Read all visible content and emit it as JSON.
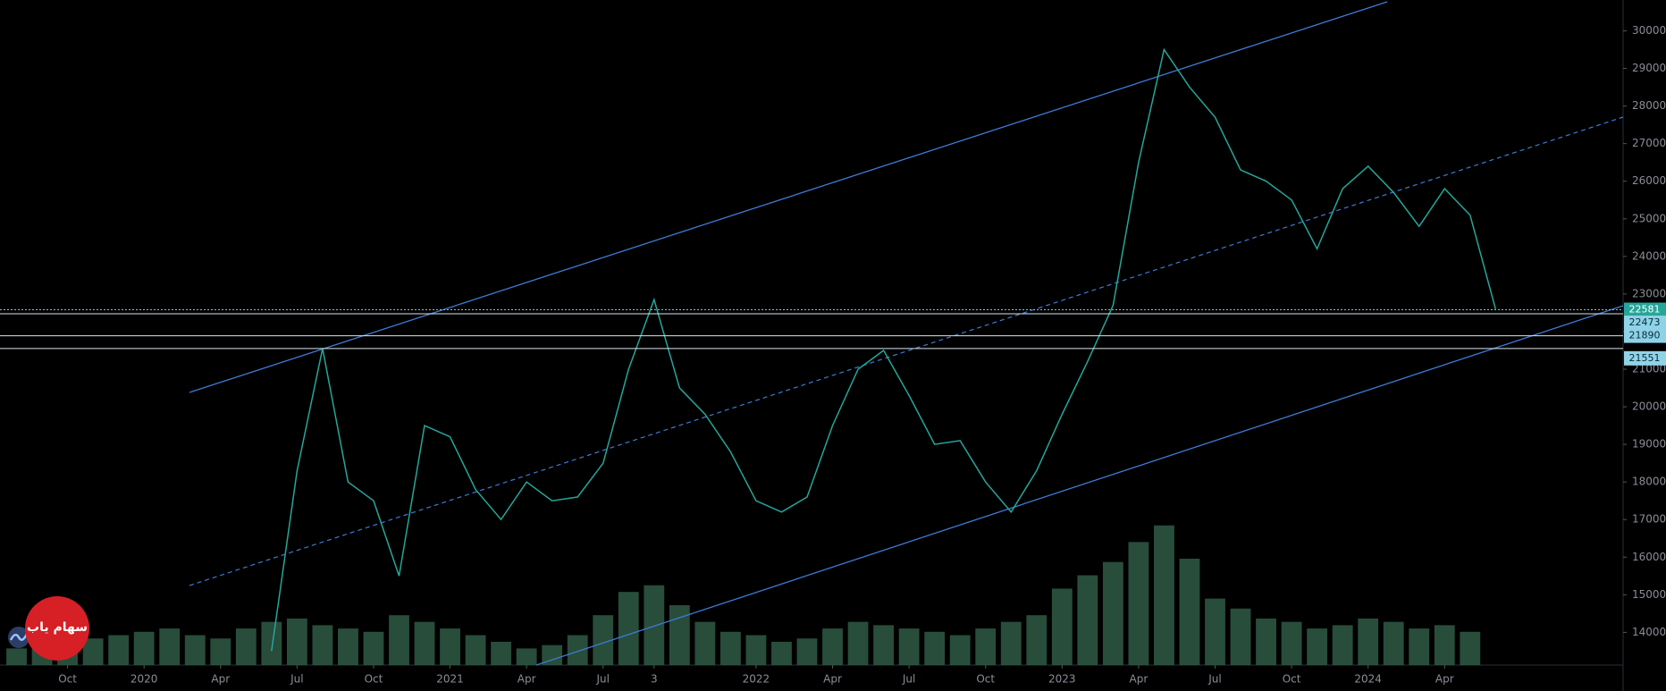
{
  "chart_data": {
    "type": "line",
    "xlim": [
      "2019-07",
      "2024-11"
    ],
    "ylim": [
      13130,
      30820
    ],
    "yticks": [
      14000,
      15000,
      16000,
      17000,
      18000,
      19000,
      20000,
      21000,
      22000,
      23000,
      24000,
      25000,
      26000,
      27000,
      28000,
      29000,
      30000
    ],
    "xticks": [
      {
        "value": "2019-10",
        "label": "Oct"
      },
      {
        "value": "2020-01",
        "label": "2020"
      },
      {
        "value": "2020-04",
        "label": "Apr"
      },
      {
        "value": "2020-07",
        "label": "Jul"
      },
      {
        "value": "2020-10",
        "label": "Oct"
      },
      {
        "value": "2021-01",
        "label": "2021"
      },
      {
        "value": "2021-04",
        "label": "Apr"
      },
      {
        "value": "2021-07",
        "label": "Jul"
      },
      {
        "value": "2021-09",
        "label": "3"
      },
      {
        "value": "2022-01",
        "label": "2022"
      },
      {
        "value": "2022-04",
        "label": "Apr"
      },
      {
        "value": "2022-07",
        "label": "Jul"
      },
      {
        "value": "2022-10",
        "label": "Oct"
      },
      {
        "value": "2023-01",
        "label": "2023"
      },
      {
        "value": "2023-04",
        "label": "Apr"
      },
      {
        "value": "2023-07",
        "label": "Jul"
      },
      {
        "value": "2023-10",
        "label": "Oct"
      },
      {
        "value": "2024-01",
        "label": "2024"
      },
      {
        "value": "2024-04",
        "label": "Apr"
      }
    ],
    "x": [
      "2020-06",
      "2020-07",
      "2020-08",
      "2020-09",
      "2020-10",
      "2020-11",
      "2020-12",
      "2021-01",
      "2021-02",
      "2021-03",
      "2021-04",
      "2021-05",
      "2021-06",
      "2021-07",
      "2021-08",
      "2021-09",
      "2021-10",
      "2021-11",
      "2021-12",
      "2022-01",
      "2022-02",
      "2022-03",
      "2022-04",
      "2022-05",
      "2022-06",
      "2022-07",
      "2022-08",
      "2022-09",
      "2022-10",
      "2022-11",
      "2022-12",
      "2023-01",
      "2023-02",
      "2023-03",
      "2023-04",
      "2023-05",
      "2023-06",
      "2023-07",
      "2023-08",
      "2023-09",
      "2023-10",
      "2023-11",
      "2023-12",
      "2024-01",
      "2024-02",
      "2024-03",
      "2024-04",
      "2024-05",
      "2024-06"
    ],
    "series": [
      {
        "color": "#26a69a",
        "values": [
          13500,
          18300,
          21550,
          18000,
          17500,
          15500,
          19500,
          19200,
          17800,
          17000,
          18000,
          17500,
          17600,
          18500,
          21000,
          22850,
          20500,
          19800,
          18800,
          17500,
          17200,
          17600,
          19500,
          21000,
          21500,
          20300,
          19000,
          19100,
          18000,
          17200,
          18300,
          19800,
          21200,
          22700,
          26500,
          29500,
          28500,
          27700,
          26300,
          26000,
          25500,
          24200,
          25800,
          26400,
          25700,
          24800,
          25800,
          25100,
          22600
        ]
      }
    ],
    "volume": {
      "color": "#2f5a45",
      "axis": "y2",
      "x": [
        "2019-08",
        "2019-09",
        "2019-10",
        "2019-11",
        "2019-12",
        "2020-01",
        "2020-02",
        "2020-03",
        "2020-04",
        "2020-05",
        "2020-06",
        "2020-07",
        "2020-08",
        "2020-09",
        "2020-10",
        "2020-11",
        "2020-12",
        "2021-01",
        "2021-02",
        "2021-03",
        "2021-04",
        "2021-05",
        "2021-06",
        "2021-07",
        "2021-08",
        "2021-09",
        "2021-10",
        "2021-11",
        "2021-12",
        "2022-01",
        "2022-02",
        "2022-03",
        "2022-04",
        "2022-05",
        "2022-06",
        "2022-07",
        "2022-08",
        "2022-09",
        "2022-10",
        "2022-11",
        "2022-12",
        "2023-01",
        "2023-02",
        "2023-03",
        "2023-04",
        "2023-05",
        "2023-06",
        "2023-07",
        "2023-08",
        "2023-09",
        "2023-10",
        "2023-11",
        "2023-12",
        "2024-01",
        "2024-02",
        "2024-03",
        "2024-04",
        "2024-05"
      ],
      "values": [
        10,
        12,
        14,
        16,
        18,
        20,
        22,
        18,
        16,
        22,
        26,
        28,
        24,
        22,
        20,
        30,
        26,
        22,
        18,
        14,
        10,
        12,
        18,
        30,
        44,
        48,
        36,
        26,
        20,
        18,
        14,
        16,
        22,
        26,
        24,
        22,
        20,
        18,
        22,
        26,
        30,
        46,
        54,
        62,
        74,
        84,
        64,
        40,
        34,
        28,
        26,
        22,
        24,
        28,
        26,
        22,
        24,
        20
      ]
    },
    "y2lim": [
      0,
      400
    ],
    "price_levels": [
      22581,
      22473,
      21890,
      21551
    ],
    "watermark": "سهام یاب"
  }
}
